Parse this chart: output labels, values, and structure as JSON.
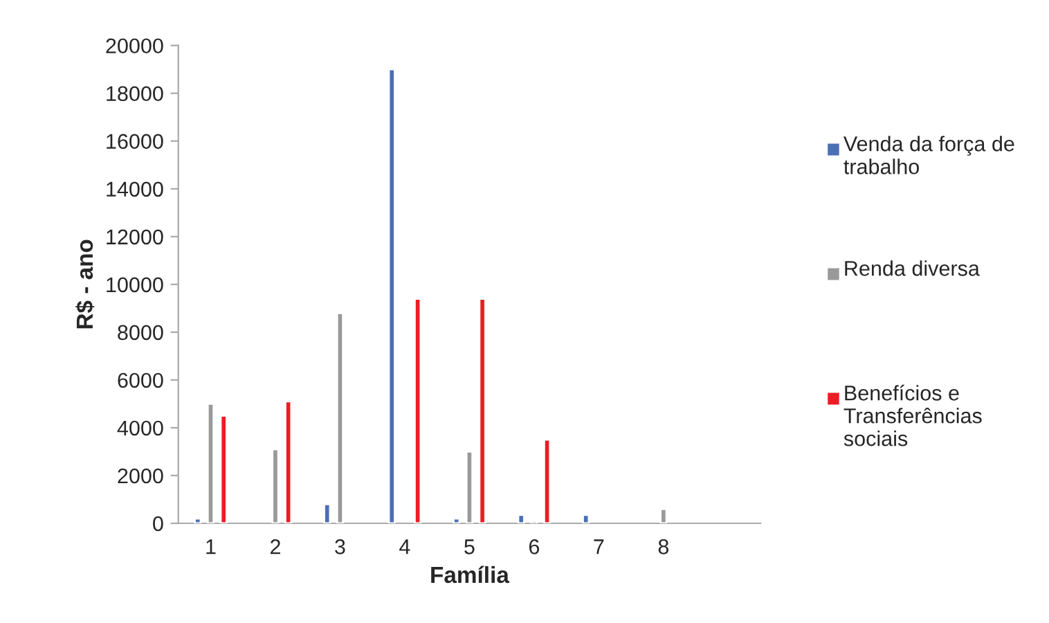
{
  "chart_data": {
    "type": "bar",
    "xlabel": "Família",
    "ylabel": "R$ - ano",
    "categories": [
      "1",
      "2",
      "3",
      "4",
      "5",
      "6",
      "7",
      "8",
      null
    ],
    "series": [
      {
        "name": "Venda da força de trabalho",
        "color": "#4a6fb5",
        "values": [
          200,
          null,
          800,
          19000,
          200,
          350,
          350,
          null,
          null
        ]
      },
      {
        "name": "Renda diversa",
        "color": "#999999",
        "values": [
          5000,
          3100,
          8800,
          null,
          3000,
          100,
          null,
          600,
          null
        ]
      },
      {
        "name": "Benefícios e Transferências sociais",
        "color": "#ee1c24",
        "values": [
          4500,
          5100,
          null,
          9400,
          9400,
          3500,
          null,
          null,
          null
        ]
      }
    ],
    "ylim": [
      0,
      20000
    ],
    "yticks": [
      0,
      2000,
      4000,
      6000,
      8000,
      10000,
      12000,
      14000,
      16000,
      18000,
      20000
    ],
    "grid": false,
    "legend": "right"
  }
}
